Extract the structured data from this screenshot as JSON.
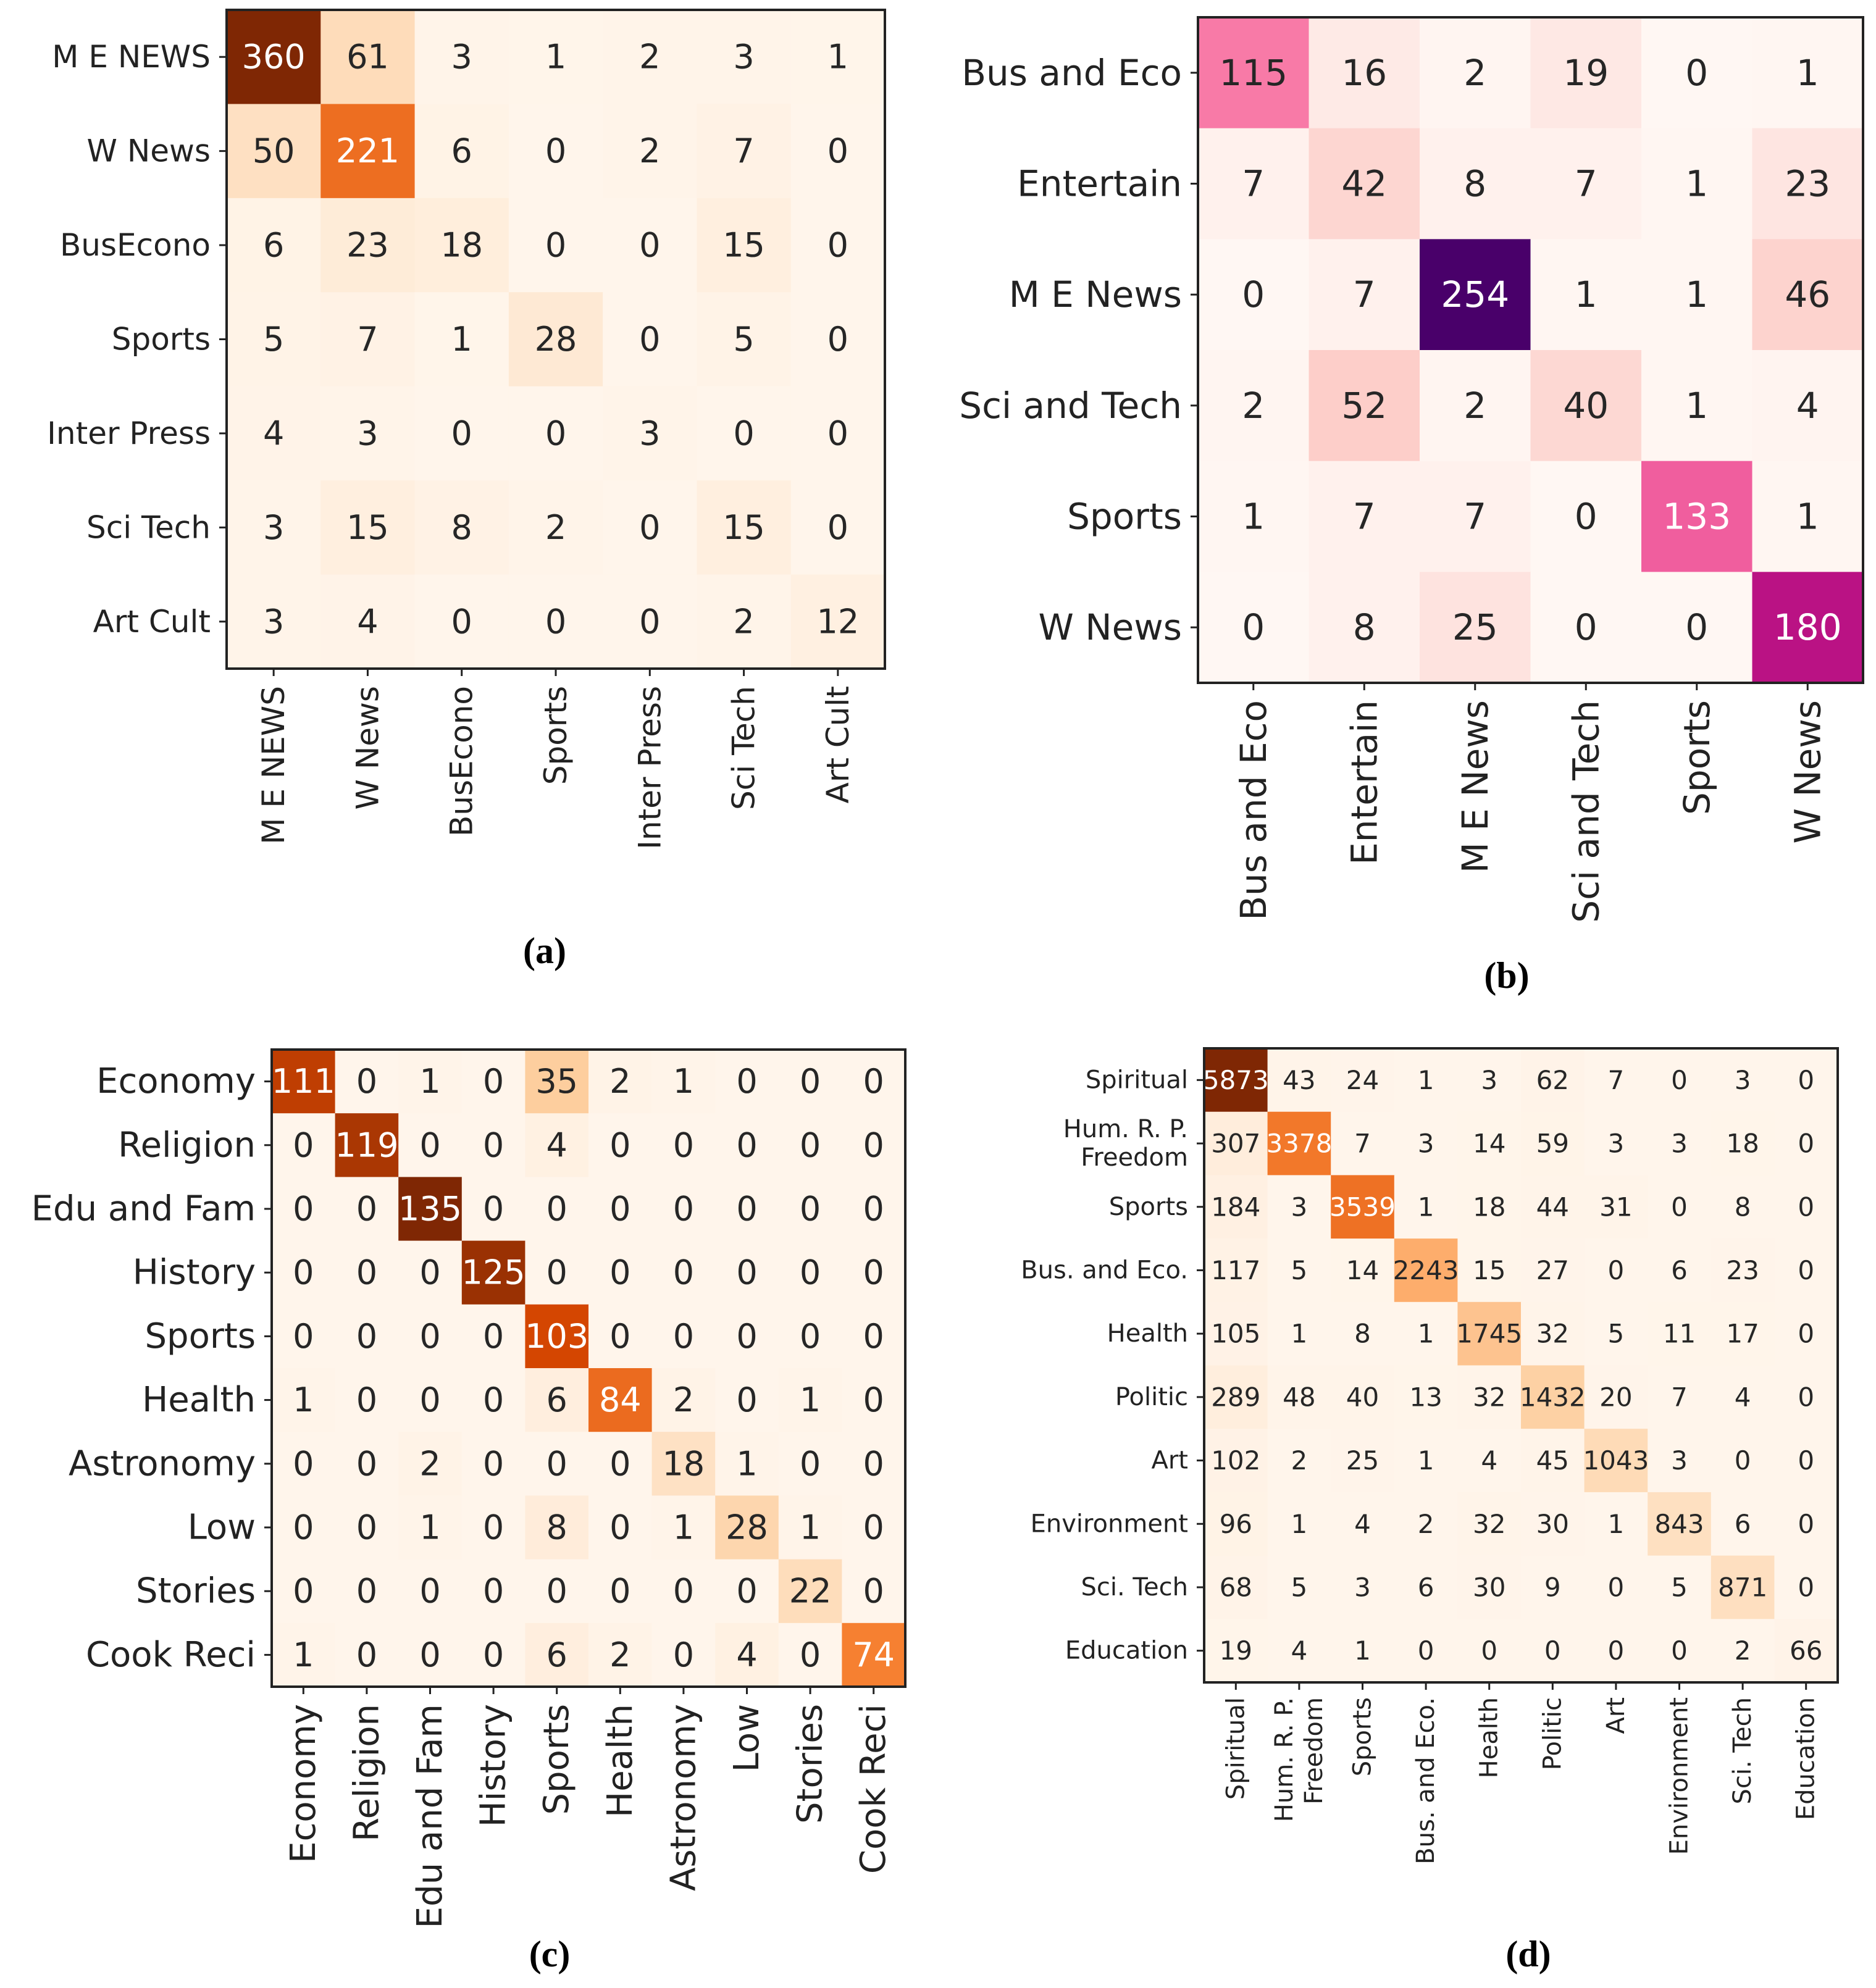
{
  "chart_data": [
    {
      "type": "heatmap",
      "panel_label": "(a)",
      "colormap": "Oranges",
      "rows": [
        "M E NEWS",
        "W News",
        "BusEcono",
        "Sports",
        "Inter Press",
        "Sci Tech",
        "Art Cult"
      ],
      "cols": [
        "M E NEWS",
        "W News",
        "BusEcono",
        "Sports",
        "Inter Press",
        "Sci Tech",
        "Art Cult"
      ],
      "values": [
        [
          360,
          61,
          3,
          1,
          2,
          3,
          1
        ],
        [
          50,
          221,
          6,
          0,
          2,
          7,
          0
        ],
        [
          6,
          23,
          18,
          0,
          0,
          15,
          0
        ],
        [
          5,
          7,
          1,
          28,
          0,
          5,
          0
        ],
        [
          4,
          3,
          0,
          0,
          3,
          0,
          0
        ],
        [
          3,
          15,
          8,
          2,
          0,
          15,
          0
        ],
        [
          3,
          4,
          0,
          0,
          0,
          2,
          12
        ]
      ]
    },
    {
      "type": "heatmap",
      "panel_label": "(b)",
      "colormap": "RdPu",
      "rows": [
        "Bus and Eco",
        "Entertain",
        "M E News",
        "Sci and Tech",
        "Sports",
        "W News"
      ],
      "cols": [
        "Bus and Eco",
        "Entertain",
        "M E News",
        "Sci and Tech",
        "Sports",
        "W News"
      ],
      "values": [
        [
          115,
          16,
          2,
          19,
          0,
          1
        ],
        [
          7,
          42,
          8,
          7,
          1,
          23
        ],
        [
          0,
          7,
          254,
          1,
          1,
          46
        ],
        [
          2,
          52,
          2,
          40,
          1,
          4
        ],
        [
          1,
          7,
          7,
          0,
          133,
          1
        ],
        [
          0,
          8,
          25,
          0,
          0,
          180
        ]
      ]
    },
    {
      "type": "heatmap",
      "panel_label": "(c)",
      "colormap": "Oranges",
      "rows": [
        "Economy",
        "Religion",
        "Edu and Fam",
        "History",
        "Sports",
        "Health",
        "Astronomy",
        "Low",
        "Stories",
        "Cook Reci"
      ],
      "cols": [
        "Economy",
        "Religion",
        "Edu and Fam",
        "History",
        "Sports",
        "Health",
        "Astronomy",
        "Low",
        "Stories",
        "Cook Reci"
      ],
      "values": [
        [
          111,
          0,
          1,
          0,
          35,
          2,
          1,
          0,
          0,
          0
        ],
        [
          0,
          119,
          0,
          0,
          4,
          0,
          0,
          0,
          0,
          0
        ],
        [
          0,
          0,
          135,
          0,
          0,
          0,
          0,
          0,
          0,
          0
        ],
        [
          0,
          0,
          0,
          125,
          0,
          0,
          0,
          0,
          0,
          0
        ],
        [
          0,
          0,
          0,
          0,
          103,
          0,
          0,
          0,
          0,
          0
        ],
        [
          1,
          0,
          0,
          0,
          6,
          84,
          2,
          0,
          1,
          0
        ],
        [
          0,
          0,
          2,
          0,
          0,
          0,
          18,
          1,
          0,
          0
        ],
        [
          0,
          0,
          1,
          0,
          8,
          0,
          1,
          28,
          1,
          0
        ],
        [
          0,
          0,
          0,
          0,
          0,
          0,
          0,
          0,
          22,
          0
        ],
        [
          1,
          0,
          0,
          0,
          6,
          2,
          0,
          4,
          0,
          74
        ]
      ]
    },
    {
      "type": "heatmap",
      "panel_label": "(d)",
      "colormap": "Oranges",
      "rows": [
        "Spiritual",
        "Hum. R. P.\nFreedom",
        "Sports",
        "Bus. and Eco.",
        "Health",
        "Politic",
        "Art",
        "Environment",
        "Sci. Tech",
        "Education"
      ],
      "cols": [
        "Spiritual",
        "Hum. R. P.\nFreedom",
        "Sports",
        "Bus. and Eco.",
        "Health",
        "Politic",
        "Art",
        "Environment",
        "Sci. Tech",
        "Education"
      ],
      "values": [
        [
          5873,
          43,
          24,
          1,
          3,
          62,
          7,
          0,
          3,
          0
        ],
        [
          307,
          3378,
          7,
          3,
          14,
          59,
          3,
          3,
          18,
          0
        ],
        [
          184,
          3,
          3539,
          1,
          18,
          44,
          31,
          0,
          8,
          0
        ],
        [
          117,
          5,
          14,
          2243,
          15,
          27,
          0,
          6,
          23,
          0
        ],
        [
          105,
          1,
          8,
          1,
          1745,
          32,
          5,
          11,
          17,
          0
        ],
        [
          289,
          48,
          40,
          13,
          32,
          1432,
          20,
          7,
          4,
          0
        ],
        [
          102,
          2,
          25,
          1,
          4,
          45,
          1043,
          3,
          0,
          0
        ],
        [
          96,
          1,
          4,
          2,
          32,
          30,
          1,
          843,
          6,
          0
        ],
        [
          68,
          5,
          3,
          6,
          30,
          9,
          0,
          5,
          871,
          0
        ],
        [
          19,
          4,
          1,
          0,
          0,
          0,
          0,
          0,
          2,
          66
        ]
      ]
    }
  ]
}
